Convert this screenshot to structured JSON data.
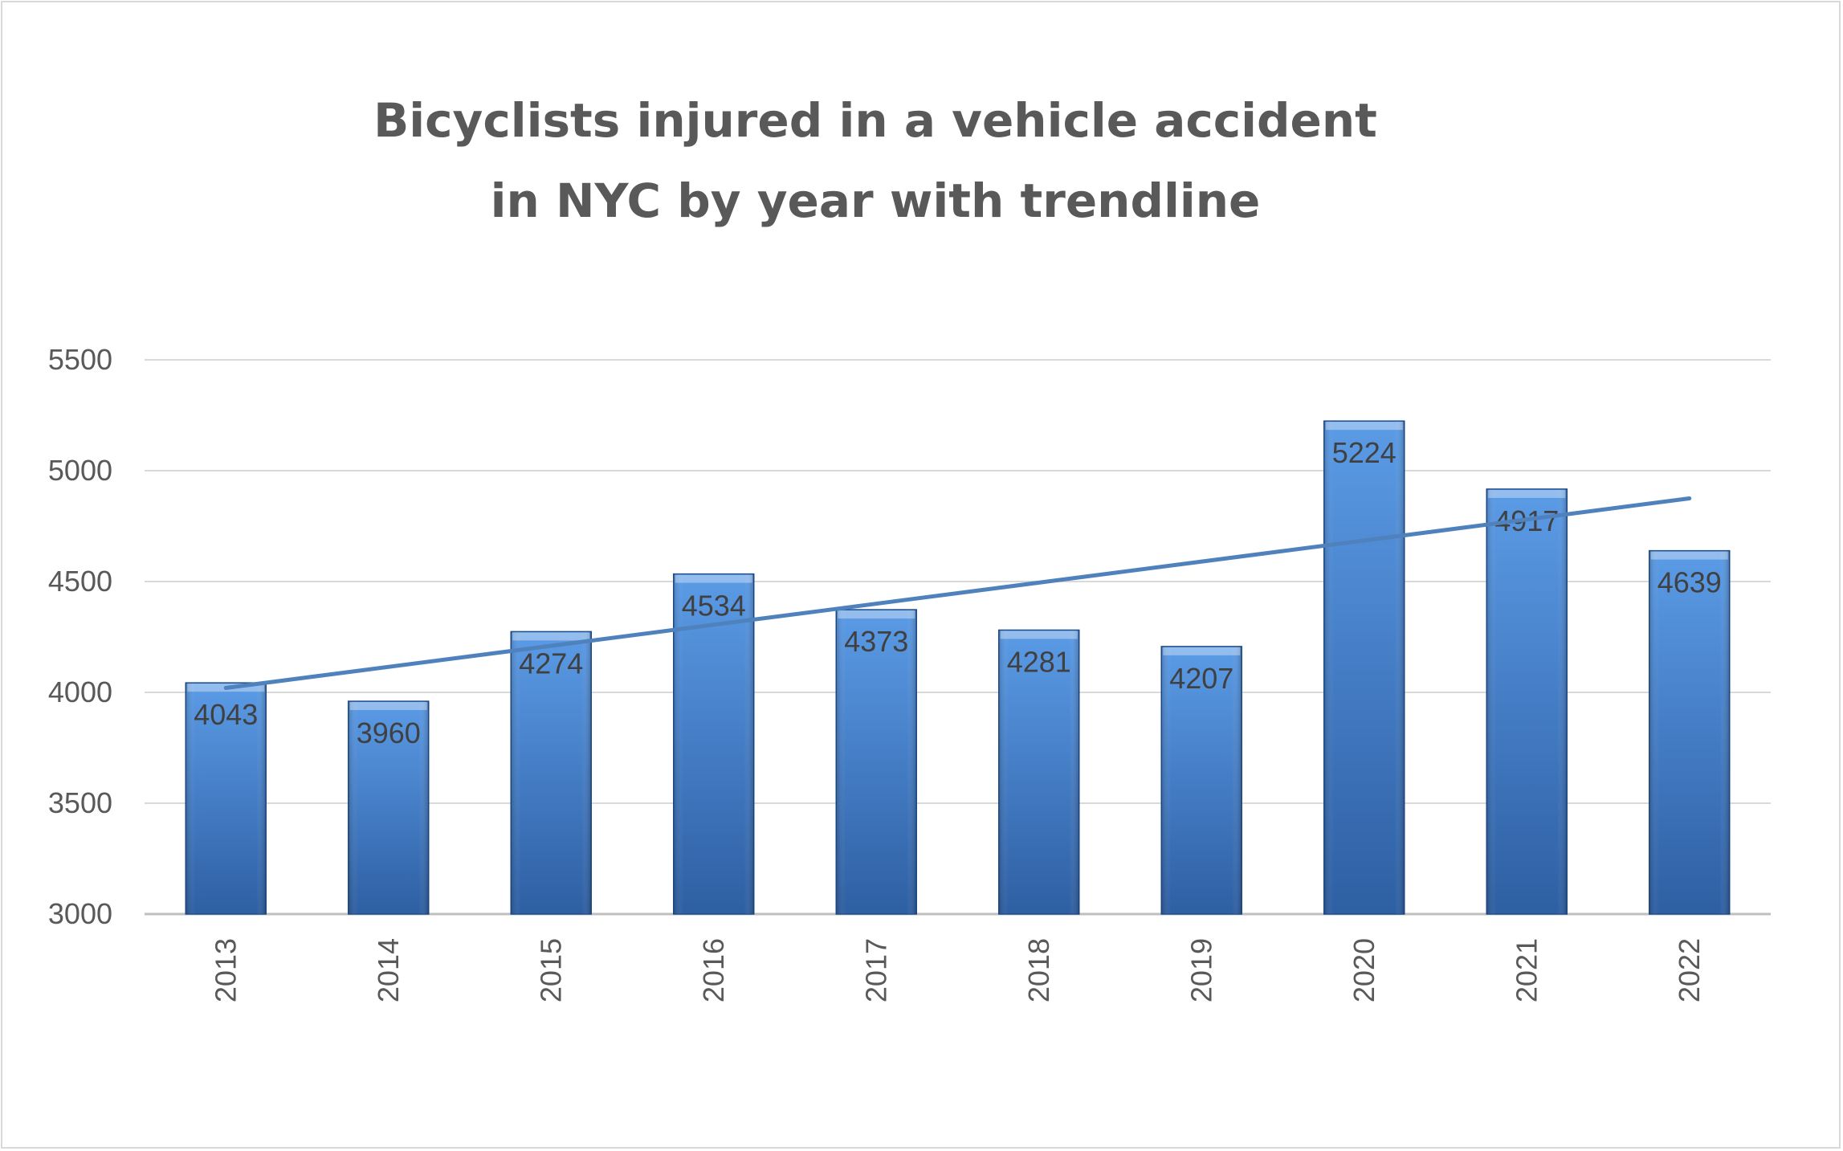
{
  "chart_data": {
    "type": "bar",
    "title_lines": [
      "Bicyclists injured in a vehicle accident",
      "in NYC by year with trendline"
    ],
    "categories": [
      "2013",
      "2014",
      "2015",
      "2016",
      "2017",
      "2018",
      "2019",
      "2020",
      "2021",
      "2022"
    ],
    "values": [
      4043,
      3960,
      4274,
      4534,
      4373,
      4281,
      4207,
      5224,
      4917,
      4639
    ],
    "data_labels": [
      "4043",
      "3960",
      "4274",
      "4534",
      "4373",
      "4281",
      "4207",
      "5224",
      "4917",
      "4639"
    ],
    "ylim": [
      3000,
      5500
    ],
    "y_ticks": [
      "3000",
      "3500",
      "4000",
      "4500",
      "5000",
      "5500"
    ],
    "grid": true,
    "legend": "none",
    "trendline": {
      "type": "linear",
      "start_value": 4020,
      "end_value": 4875
    },
    "colors": {
      "bar_top": "#5b9be6",
      "bar_bottom": "#2e5fa3",
      "bar_edge": "#1f4e8c",
      "trendline": "#4f81bd",
      "grid": "#d9d9d9",
      "axis": "#bfbfbf"
    }
  }
}
